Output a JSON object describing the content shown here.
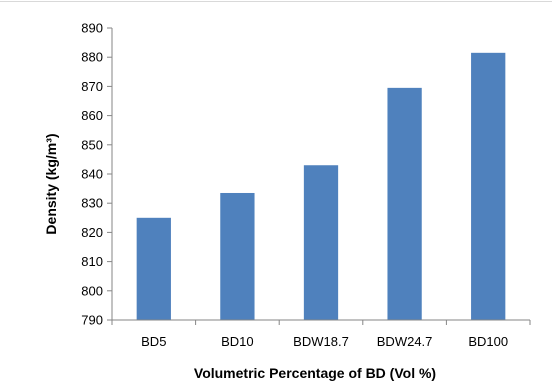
{
  "chart_data": {
    "type": "bar",
    "categories": [
      "BD5",
      "BD10",
      "BDW18.7",
      "BDW24.7",
      "BD100"
    ],
    "values": [
      825,
      833.5,
      843,
      869.5,
      881.5
    ],
    "title": "",
    "xlabel": "Volumetric  Percentage of BD (Vol %)",
    "ylabel": "Density (kg/m³)",
    "ylim": [
      790,
      890
    ],
    "yticks": [
      790,
      800,
      810,
      820,
      830,
      840,
      850,
      860,
      870,
      880,
      890
    ],
    "grid": false,
    "legend": "none",
    "colors": {
      "bar": "#4f81bd",
      "axis": "#868686",
      "frame": "#d9d9d9"
    }
  }
}
